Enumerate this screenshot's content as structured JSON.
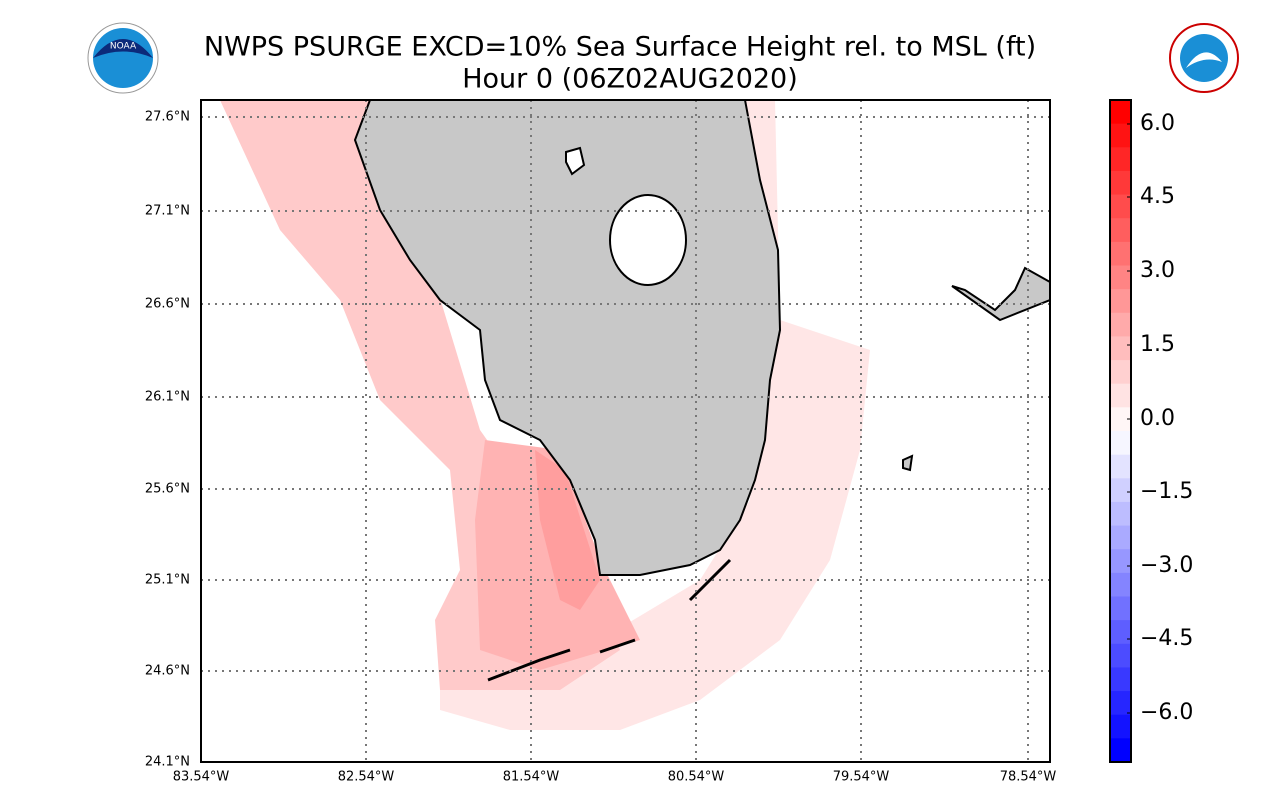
{
  "header": {
    "title_line1": "NWPS PSURGE EXCD=10% Sea Surface Height rel. to MSL (ft)",
    "title_line2": "Hour 0 (06Z02AUG2020)"
  },
  "map": {
    "lat_labels": [
      "27.6°N",
      "27.1°N",
      "26.6°N",
      "26.1°N",
      "25.6°N",
      "25.1°N",
      "24.6°N",
      "24.1°N"
    ],
    "lon_labels": [
      "83.54°W",
      "82.54°W",
      "81.54°W",
      "80.54°W",
      "79.54°W",
      "78.54°W"
    ]
  },
  "colorbar": {
    "tick_labels": [
      "6.0",
      "4.5",
      "3.0",
      "1.5",
      "0.0",
      "−1.5",
      "−3.0",
      "−4.5",
      "−6.0"
    ]
  }
}
